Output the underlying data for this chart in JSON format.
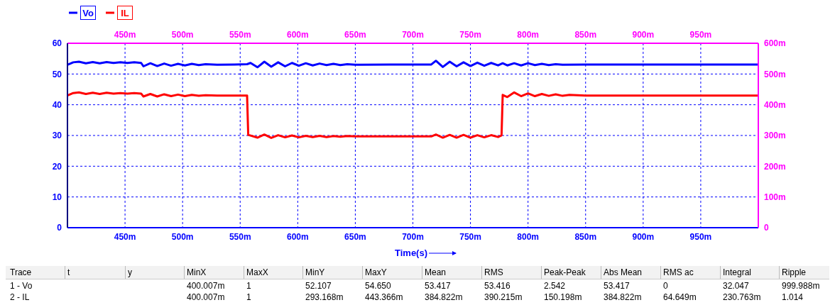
{
  "chart_data": {
    "type": "line",
    "xlabel": "Time(s)",
    "legend": "top left",
    "grid": true,
    "line_style": "solid",
    "marker": "none",
    "xlim": [
      400,
      1000
    ],
    "xticks": [
      {
        "value": 450,
        "label": "450m"
      },
      {
        "value": 500,
        "label": "500m"
      },
      {
        "value": 550,
        "label": "550m"
      },
      {
        "value": 600,
        "label": "600m"
      },
      {
        "value": 650,
        "label": "650m"
      },
      {
        "value": 700,
        "label": "700m"
      },
      {
        "value": 750,
        "label": "750m"
      },
      {
        "value": 800,
        "label": "800m"
      },
      {
        "value": 850,
        "label": "850m"
      },
      {
        "value": 900,
        "label": "900m"
      },
      {
        "value": 950,
        "label": "950m"
      }
    ],
    "x2lim": [
      400,
      1000
    ],
    "x2ticks": [
      {
        "value": 450,
        "label": "450m"
      },
      {
        "value": 500,
        "label": "500m"
      },
      {
        "value": 550,
        "label": "550m"
      },
      {
        "value": 600,
        "label": "600m"
      },
      {
        "value": 650,
        "label": "650m"
      },
      {
        "value": 700,
        "label": "700m"
      },
      {
        "value": 750,
        "label": "750m"
      },
      {
        "value": 800,
        "label": "800m"
      },
      {
        "value": 850,
        "label": "850m"
      },
      {
        "value": 900,
        "label": "900m"
      },
      {
        "value": 950,
        "label": "950m"
      }
    ],
    "ylim": [
      0,
      60
    ],
    "yticks": [
      0,
      10,
      20,
      30,
      40,
      50,
      60
    ],
    "y2lim": [
      0,
      600
    ],
    "y2ticks": [
      0,
      {
        "value": 100,
        "label": "100m"
      },
      {
        "value": 200,
        "label": "200m"
      },
      {
        "value": 300,
        "label": "300m"
      },
      {
        "value": 400,
        "label": "400m"
      },
      {
        "value": 500,
        "label": "500m"
      },
      {
        "value": 600,
        "label": "600m"
      }
    ],
    "series": [
      {
        "name": "Vo",
        "color": "#0000ff",
        "x": [
          400,
          405,
          410,
          416,
          422,
          428,
          434,
          440,
          446,
          452,
          458,
          464,
          466,
          472,
          478,
          484,
          490,
          496,
          502,
          508,
          514,
          520,
          530,
          545,
          556,
          559,
          565,
          571,
          577,
          583,
          589,
          595,
          601,
          607,
          613,
          619,
          625,
          631,
          637,
          643,
          650,
          680,
          716,
          720,
          726,
          732,
          738,
          744,
          750,
          756,
          762,
          768,
          774,
          778,
          782,
          788,
          794,
          800,
          806,
          812,
          818,
          824,
          830,
          850,
          900,
          950,
          1000
        ],
        "values": [
          53.0,
          53.8,
          54.0,
          53.5,
          53.9,
          53.5,
          53.9,
          53.6,
          53.8,
          53.6,
          53.8,
          53.6,
          52.5,
          53.5,
          52.6,
          53.4,
          52.7,
          53.3,
          52.8,
          53.3,
          52.9,
          53.2,
          53.0,
          53.1,
          53.2,
          53.6,
          52.2,
          54.0,
          52.4,
          53.8,
          52.5,
          53.6,
          52.7,
          53.5,
          52.8,
          53.4,
          52.9,
          53.3,
          52.9,
          53.2,
          53.0,
          53.1,
          53.1,
          54.3,
          52.3,
          54.0,
          52.5,
          53.8,
          52.6,
          53.7,
          52.7,
          53.6,
          52.8,
          53.5,
          52.8,
          53.5,
          52.8,
          53.5,
          52.9,
          53.3,
          52.9,
          53.2,
          53.0,
          53.1,
          53.1,
          53.1,
          53.1
        ]
      },
      {
        "name": "IL",
        "color": "#ff0000",
        "axis": "y2",
        "x": [
          400,
          405,
          410,
          416,
          422,
          428,
          434,
          440,
          446,
          452,
          458,
          464,
          466,
          472,
          478,
          484,
          490,
          496,
          502,
          508,
          514,
          520,
          530,
          545,
          556,
          557,
          565,
          571,
          577,
          583,
          589,
          595,
          601,
          607,
          613,
          619,
          625,
          631,
          637,
          643,
          650,
          680,
          716,
          720,
          726,
          732,
          738,
          744,
          750,
          756,
          762,
          768,
          774,
          777,
          778,
          782,
          788,
          794,
          800,
          806,
          812,
          818,
          824,
          830,
          836,
          850,
          900,
          1000
        ],
        "values": [
          430,
          438,
          440,
          435,
          439,
          435,
          439,
          436,
          438,
          436,
          438,
          436,
          427,
          435,
          427,
          434,
          428,
          433,
          428,
          432,
          429,
          431,
          430,
          430,
          430,
          302,
          293,
          303,
          292,
          301,
          294,
          300,
          294,
          299,
          295,
          299,
          295,
          298,
          296,
          298,
          297,
          297,
          297,
          303,
          293,
          302,
          293,
          302,
          293,
          301,
          294,
          301,
          295,
          300,
          432,
          425,
          440,
          428,
          437,
          428,
          435,
          429,
          434,
          429,
          432,
          430,
          430,
          430
        ]
      }
    ],
    "annotations": [
      "Trace",
      "t",
      "y",
      "MinX",
      "MaxX",
      "MinY",
      "MaxY",
      "Mean",
      "RMS",
      "Peak-Peak",
      "Abs Mean",
      "RMS ac",
      "Integral",
      "Ripple",
      "1 - Vo",
      "400.007m",
      "1",
      "52.107",
      "54.650",
      "53.417",
      "53.416",
      "2.542",
      "53.417",
      "0",
      "32.047",
      "999.988m",
      "2 - IL",
      "400.007m",
      "1",
      "293.168m",
      "443.366m",
      "384.822m",
      "390.215m",
      "150.198m",
      "384.822m",
      "64.649m",
      "230.763m",
      "1.014"
    ]
  }
}
